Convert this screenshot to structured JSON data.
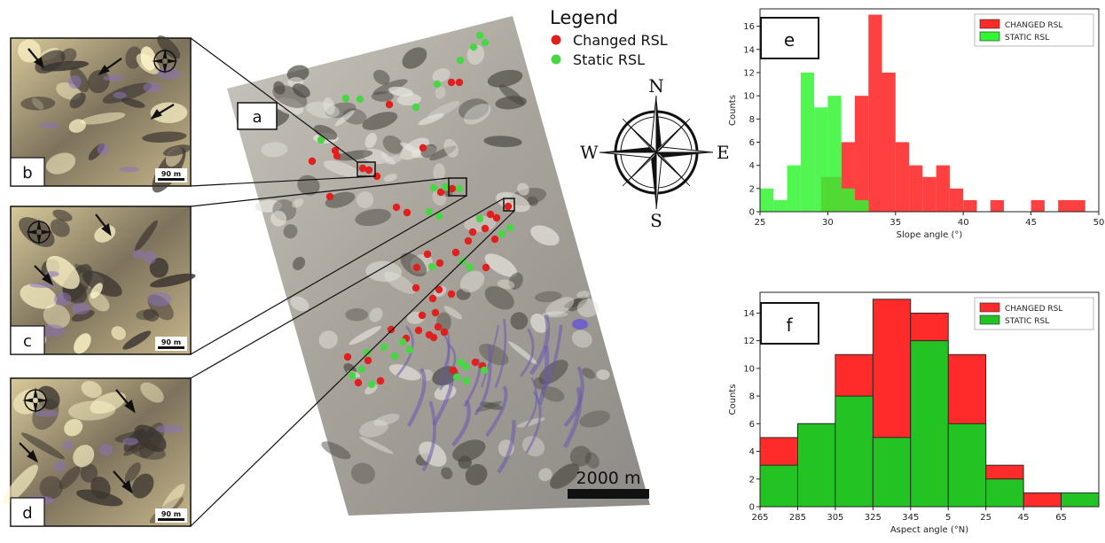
{
  "figure": {
    "legend_title": "Legend",
    "legend_items": [
      {
        "label": "Changed RSL",
        "color": "#e01f1f"
      },
      {
        "label": "Static RSL",
        "color": "#49d645"
      }
    ],
    "panel_labels": {
      "a": "a",
      "b": "b",
      "c": "c",
      "d": "d",
      "e": "e",
      "f": "f"
    },
    "scale_bar_main": "2000 m",
    "scale_bar_inset": "90 m",
    "compass": {
      "n": "N",
      "s": "S",
      "e": "E",
      "w": "W"
    }
  },
  "chart_data": [
    {
      "type": "histogram",
      "panel": "e",
      "xlabel": "Slope angle (°)",
      "ylabel": "Counts",
      "xlim": [
        25,
        50
      ],
      "ylim": [
        0,
        17.5
      ],
      "xticks": [
        25,
        30,
        35,
        40,
        45,
        50
      ],
      "yticks": [
        0,
        2,
        4,
        6,
        8,
        10,
        12,
        14,
        16
      ],
      "legend_position": "top-right",
      "series": [
        {
          "name": "CHANGED RSL",
          "color": "#ff2b2b",
          "bins": [
            {
              "x0": 29.5,
              "x1": 31,
              "count": 3
            },
            {
              "x0": 31,
              "x1": 32,
              "count": 6
            },
            {
              "x0": 32,
              "x1": 33,
              "count": 10
            },
            {
              "x0": 33,
              "x1": 34,
              "count": 17
            },
            {
              "x0": 34,
              "x1": 35,
              "count": 12
            },
            {
              "x0": 35,
              "x1": 36,
              "count": 6
            },
            {
              "x0": 36,
              "x1": 37,
              "count": 4
            },
            {
              "x0": 37,
              "x1": 38,
              "count": 3
            },
            {
              "x0": 38,
              "x1": 39,
              "count": 4
            },
            {
              "x0": 39,
              "x1": 40,
              "count": 2
            },
            {
              "x0": 40,
              "x1": 41,
              "count": 1
            },
            {
              "x0": 42,
              "x1": 43,
              "count": 1
            },
            {
              "x0": 45,
              "x1": 46,
              "count": 1
            },
            {
              "x0": 47,
              "x1": 49,
              "count": 1
            }
          ]
        },
        {
          "name": "STATIC  RSL",
          "color": "#33f533",
          "bins": [
            {
              "x0": 25,
              "x1": 26,
              "count": 2
            },
            {
              "x0": 26,
              "x1": 27,
              "count": 1
            },
            {
              "x0": 27,
              "x1": 28,
              "count": 4
            },
            {
              "x0": 28,
              "x1": 29,
              "count": 12
            },
            {
              "x0": 29,
              "x1": 30,
              "count": 9
            },
            {
              "x0": 30,
              "x1": 31,
              "count": 10
            },
            {
              "x0": 31,
              "x1": 32,
              "count": 2
            },
            {
              "x0": 32,
              "x1": 33,
              "count": 1
            }
          ]
        }
      ]
    },
    {
      "type": "histogram",
      "panel": "f",
      "xlabel": "Aspect angle (°N)",
      "ylabel": "Counts",
      "ylim": [
        0,
        15.5
      ],
      "xtick_labels": [
        "265",
        "285",
        "305",
        "325",
        "345",
        "5",
        "25",
        "45",
        "65"
      ],
      "yticks": [
        0,
        2,
        4,
        6,
        8,
        10,
        12,
        14
      ],
      "legend_position": "top-right",
      "series": [
        {
          "name": "CHANGED RSL",
          "color": "#ff2b2b",
          "bins": [
            {
              "from": "265",
              "to": "285",
              "count": 5
            },
            {
              "from": "285",
              "to": "305",
              "count": 6
            },
            {
              "from": "305",
              "to": "325",
              "count": 11
            },
            {
              "from": "325",
              "to": "345",
              "count": 15
            },
            {
              "from": "345",
              "to": "5",
              "count": 14
            },
            {
              "from": "5",
              "to": "25",
              "count": 11
            },
            {
              "from": "25",
              "to": "45",
              "count": 3
            },
            {
              "from": "45",
              "to": "65",
              "count": 1
            },
            {
              "from": "65",
              "to": "85",
              "count": 0
            }
          ]
        },
        {
          "name": "STATIC  RSL",
          "color": "#22c322",
          "bins": [
            {
              "from": "265",
              "to": "285",
              "count": 3
            },
            {
              "from": "285",
              "to": "305",
              "count": 6
            },
            {
              "from": "305",
              "to": "325",
              "count": 8
            },
            {
              "from": "325",
              "to": "345",
              "count": 5
            },
            {
              "from": "345",
              "to": "5",
              "count": 12
            },
            {
              "from": "5",
              "to": "25",
              "count": 6
            },
            {
              "from": "25",
              "to": "45",
              "count": 2
            },
            {
              "from": "45",
              "to": "65",
              "count": 0
            },
            {
              "from": "65",
              "to": "85",
              "count": 1
            }
          ]
        }
      ]
    }
  ]
}
